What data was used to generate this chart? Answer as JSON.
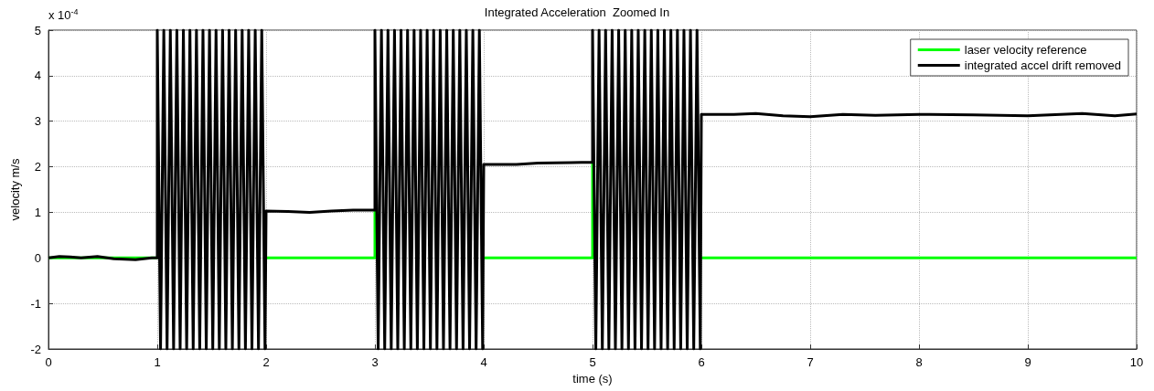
{
  "chart_data": {
    "type": "line",
    "title": "Integrated Acceleration  Zoomed In",
    "xlabel": "time (s)",
    "ylabel": "velocity m/s",
    "annotations": [
      "x 10$^{-4}$"
    ],
    "xlim": [
      0,
      10
    ],
    "xticks": [
      0,
      1,
      2,
      3,
      4,
      5,
      6,
      7,
      8,
      9,
      10
    ],
    "ylim": [
      -2,
      5
    ],
    "yticks": [
      -2,
      -1,
      0,
      1,
      2,
      3,
      4,
      5
    ],
    "grid": true,
    "legend": "top right",
    "marker": "none",
    "line_style": "solid",
    "series": [
      {
        "name": "laser velocity reference",
        "color": "#00ff00",
        "x": [
          0,
          1,
          null,
          2,
          3,
          3,
          null,
          4,
          5,
          5,
          null,
          6,
          10
        ],
        "values": [
          0,
          0,
          null,
          0,
          0,
          1.05,
          null,
          0,
          0,
          2.1,
          null,
          0,
          0
        ]
      },
      {
        "name": "integrated accel drift removed",
        "color": "#000000",
        "x": [
          0,
          0.1,
          0.2,
          0.3,
          0.45,
          0.6,
          0.8,
          0.95,
          1,
          1,
          1.03,
          1.06,
          1.09,
          1.12,
          1.15,
          1.18,
          1.21,
          1.24,
          1.27,
          1.3,
          1.33,
          1.36,
          1.39,
          1.42,
          1.45,
          1.48,
          1.51,
          1.54,
          1.57,
          1.6,
          1.63,
          1.66,
          1.69,
          1.72,
          1.75,
          1.78,
          1.81,
          1.84,
          1.87,
          1.9,
          1.93,
          1.96,
          1.99,
          2,
          2.2,
          2.4,
          2.6,
          2.8,
          3,
          3,
          3.03,
          3.06,
          3.09,
          3.12,
          3.15,
          3.18,
          3.21,
          3.24,
          3.27,
          3.3,
          3.33,
          3.36,
          3.39,
          3.42,
          3.45,
          3.48,
          3.51,
          3.54,
          3.57,
          3.6,
          3.63,
          3.66,
          3.69,
          3.72,
          3.75,
          3.78,
          3.81,
          3.84,
          3.87,
          3.9,
          3.93,
          3.96,
          3.99,
          4,
          4.3,
          4.5,
          4.8,
          5,
          5,
          5.03,
          5.06,
          5.09,
          5.12,
          5.15,
          5.18,
          5.21,
          5.24,
          5.27,
          5.3,
          5.33,
          5.36,
          5.39,
          5.42,
          5.45,
          5.48,
          5.51,
          5.54,
          5.57,
          5.6,
          5.63,
          5.66,
          5.69,
          5.72,
          5.75,
          5.78,
          5.81,
          5.84,
          5.87,
          5.9,
          5.93,
          5.96,
          5.99,
          6,
          6.3,
          6.5,
          6.75,
          7,
          7.3,
          7.6,
          8,
          8.5,
          9,
          9.5,
          9.8,
          10
        ],
        "values": [
          0,
          0.03,
          0.02,
          0,
          0.03,
          -0.02,
          -0.04,
          0,
          0,
          5,
          -2,
          5,
          -2,
          5,
          -2,
          5,
          -2,
          5,
          -2,
          5,
          -2,
          5,
          -2,
          5,
          -2,
          5,
          -2,
          5,
          -2,
          5,
          -2,
          5,
          -2,
          5,
          -2,
          5,
          -2,
          5,
          -2,
          5,
          -2,
          5,
          -2,
          1.03,
          1.02,
          1,
          1.03,
          1.05,
          1.05,
          5,
          -2,
          5,
          -2,
          5,
          -2,
          5,
          -2,
          5,
          -2,
          5,
          -2,
          5,
          -2,
          5,
          -2,
          5,
          -2,
          5,
          -2,
          5,
          -2,
          5,
          -2,
          5,
          -2,
          5,
          -2,
          5,
          -2,
          5,
          -2,
          5,
          -2,
          2.05,
          2.05,
          2.08,
          2.09,
          2.1,
          5,
          -2,
          5,
          -2,
          5,
          -2,
          5,
          -2,
          5,
          -2,
          5,
          -2,
          5,
          -2,
          5,
          -2,
          5,
          -2,
          5,
          -2,
          5,
          -2,
          5,
          -2,
          5,
          -2,
          5,
          -2,
          5,
          -2,
          5,
          -2,
          5,
          -2,
          3.15,
          3.15,
          3.17,
          3.12,
          3.1,
          3.15,
          3.13,
          3.15,
          3.14,
          3.12,
          3.17,
          3.12,
          3.16
        ]
      }
    ]
  }
}
